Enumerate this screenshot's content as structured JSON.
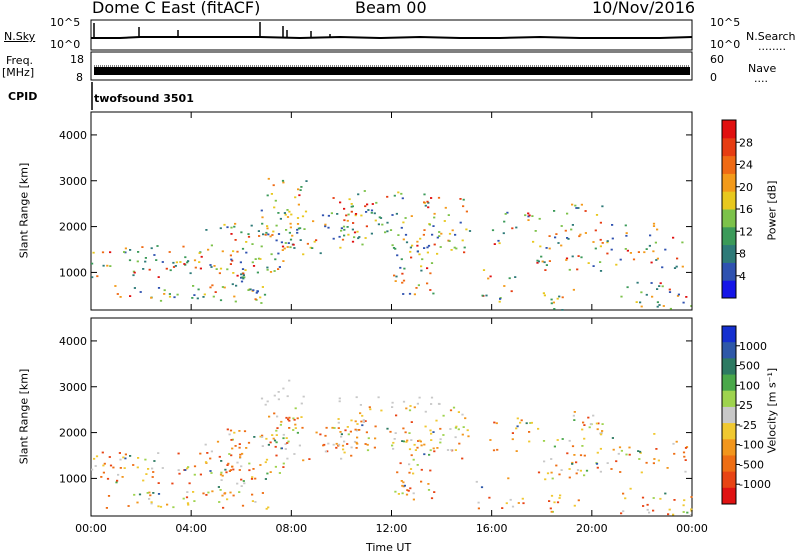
{
  "header": {
    "site": "Dome C East (fitACF)",
    "beam": "Beam 00",
    "date": "10/Nov/2016"
  },
  "labels": {
    "nsky": "N.Sky",
    "nsearch": "N.Search",
    "nsearch_dots": "........",
    "freq_l1": "Freq.",
    "freq_l2": "[MHz]",
    "nave": "Nave",
    "nave_dots": "....",
    "cpid": "CPID",
    "cpid_value": "twofsound 3501",
    "noise_ticks_left": [
      "10^5",
      "10^0"
    ],
    "noise_ticks_right": [
      "10^5",
      "10^0"
    ],
    "freq_ticks": [
      "18",
      "8"
    ],
    "nave_ticks": [
      "60",
      "0"
    ]
  },
  "chart_data": [
    {
      "type": "heatmap",
      "name": "power",
      "ylabel": "Slant Range [km]",
      "ylim": [
        180,
        4500
      ],
      "yticks": [
        "1000",
        "2000",
        "3000",
        "4000"
      ],
      "colorbar": {
        "label": "Power [dB]",
        "ticks": [
          "4",
          "8",
          "12",
          "16",
          "20",
          "24",
          "28"
        ],
        "colors": [
          "#1515e8",
          "#2f52b0",
          "#2e7a78",
          "#3b9a59",
          "#7cc24a",
          "#e8c81e",
          "#f39a1a",
          "#ef6a14",
          "#e63c12",
          "#e01010"
        ]
      }
    },
    {
      "type": "heatmap",
      "name": "velocity",
      "ylabel": "Slant Range [km]",
      "ylim": [
        180,
        4500
      ],
      "yticks": [
        "1000",
        "2000",
        "3000",
        "4000"
      ],
      "xlabel": "Time UT",
      "xticks": [
        "00:00",
        "04:00",
        "08:00",
        "12:00",
        "16:00",
        "20:00",
        "00:00"
      ],
      "colorbar": {
        "label": "Velocity [m s⁻¹]",
        "ticks": [
          "1000",
          "500",
          "100",
          "25",
          "-25",
          "-100",
          "-500",
          "-1000"
        ],
        "colors": [
          "#1530d0",
          "#2e58a8",
          "#2d7a62",
          "#4aa84a",
          "#9ed34e",
          "#c8c8c8",
          "#f0c830",
          "#f2961c",
          "#ee6e14",
          "#e84414",
          "#e01212"
        ]
      }
    }
  ]
}
